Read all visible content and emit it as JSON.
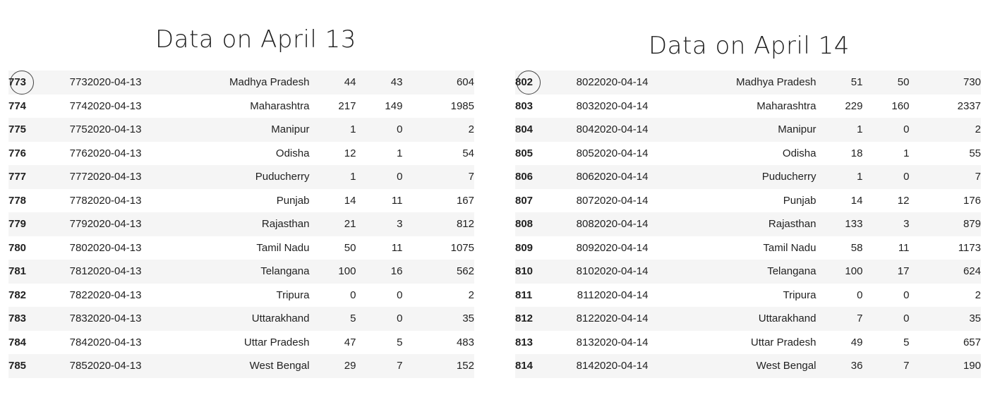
{
  "left": {
    "title": "Data on April 13",
    "rows": [
      {
        "idx": "773",
        "sno": "773",
        "date": "2020-04-13",
        "state": "Madhya Pradesh",
        "n1": "44",
        "n2": "43",
        "n3": "604"
      },
      {
        "idx": "774",
        "sno": "774",
        "date": "2020-04-13",
        "state": "Maharashtra",
        "n1": "217",
        "n2": "149",
        "n3": "1985"
      },
      {
        "idx": "775",
        "sno": "775",
        "date": "2020-04-13",
        "state": "Manipur",
        "n1": "1",
        "n2": "0",
        "n3": "2"
      },
      {
        "idx": "776",
        "sno": "776",
        "date": "2020-04-13",
        "state": "Odisha",
        "n1": "12",
        "n2": "1",
        "n3": "54"
      },
      {
        "idx": "777",
        "sno": "777",
        "date": "2020-04-13",
        "state": "Puducherry",
        "n1": "1",
        "n2": "0",
        "n3": "7"
      },
      {
        "idx": "778",
        "sno": "778",
        "date": "2020-04-13",
        "state": "Punjab",
        "n1": "14",
        "n2": "11",
        "n3": "167"
      },
      {
        "idx": "779",
        "sno": "779",
        "date": "2020-04-13",
        "state": "Rajasthan",
        "n1": "21",
        "n2": "3",
        "n3": "812"
      },
      {
        "idx": "780",
        "sno": "780",
        "date": "2020-04-13",
        "state": "Tamil Nadu",
        "n1": "50",
        "n2": "11",
        "n3": "1075"
      },
      {
        "idx": "781",
        "sno": "781",
        "date": "2020-04-13",
        "state": "Telangana",
        "n1": "100",
        "n2": "16",
        "n3": "562"
      },
      {
        "idx": "782",
        "sno": "782",
        "date": "2020-04-13",
        "state": "Tripura",
        "n1": "0",
        "n2": "0",
        "n3": "2"
      },
      {
        "idx": "783",
        "sno": "783",
        "date": "2020-04-13",
        "state": "Uttarakhand",
        "n1": "5",
        "n2": "0",
        "n3": "35"
      },
      {
        "idx": "784",
        "sno": "784",
        "date": "2020-04-13",
        "state": "Uttar Pradesh",
        "n1": "47",
        "n2": "5",
        "n3": "483"
      },
      {
        "idx": "785",
        "sno": "785",
        "date": "2020-04-13",
        "state": "West Bengal",
        "n1": "29",
        "n2": "7",
        "n3": "152"
      }
    ]
  },
  "right": {
    "title": "Data on April 14",
    "rows": [
      {
        "idx": "802",
        "sno": "802",
        "date": "2020-04-14",
        "state": "Madhya Pradesh",
        "n1": "51",
        "n2": "50",
        "n3": "730"
      },
      {
        "idx": "803",
        "sno": "803",
        "date": "2020-04-14",
        "state": "Maharashtra",
        "n1": "229",
        "n2": "160",
        "n3": "2337"
      },
      {
        "idx": "804",
        "sno": "804",
        "date": "2020-04-14",
        "state": "Manipur",
        "n1": "1",
        "n2": "0",
        "n3": "2"
      },
      {
        "idx": "805",
        "sno": "805",
        "date": "2020-04-14",
        "state": "Odisha",
        "n1": "18",
        "n2": "1",
        "n3": "55"
      },
      {
        "idx": "806",
        "sno": "806",
        "date": "2020-04-14",
        "state": "Puducherry",
        "n1": "1",
        "n2": "0",
        "n3": "7"
      },
      {
        "idx": "807",
        "sno": "807",
        "date": "2020-04-14",
        "state": "Punjab",
        "n1": "14",
        "n2": "12",
        "n3": "176"
      },
      {
        "idx": "808",
        "sno": "808",
        "date": "2020-04-14",
        "state": "Rajasthan",
        "n1": "133",
        "n2": "3",
        "n3": "879"
      },
      {
        "idx": "809",
        "sno": "809",
        "date": "2020-04-14",
        "state": "Tamil Nadu",
        "n1": "58",
        "n2": "11",
        "n3": "1173"
      },
      {
        "idx": "810",
        "sno": "810",
        "date": "2020-04-14",
        "state": "Telangana",
        "n1": "100",
        "n2": "17",
        "n3": "624"
      },
      {
        "idx": "811",
        "sno": "811",
        "date": "2020-04-14",
        "state": "Tripura",
        "n1": "0",
        "n2": "0",
        "n3": "2"
      },
      {
        "idx": "812",
        "sno": "812",
        "date": "2020-04-14",
        "state": "Uttarakhand",
        "n1": "7",
        "n2": "0",
        "n3": "35"
      },
      {
        "idx": "813",
        "sno": "813",
        "date": "2020-04-14",
        "state": "Uttar Pradesh",
        "n1": "49",
        "n2": "5",
        "n3": "657"
      },
      {
        "idx": "814",
        "sno": "814",
        "date": "2020-04-14",
        "state": "West Bengal",
        "n1": "36",
        "n2": "7",
        "n3": "190"
      }
    ]
  },
  "highlight": {
    "row": 0,
    "marker_icon": "circle-highlight-icon"
  }
}
